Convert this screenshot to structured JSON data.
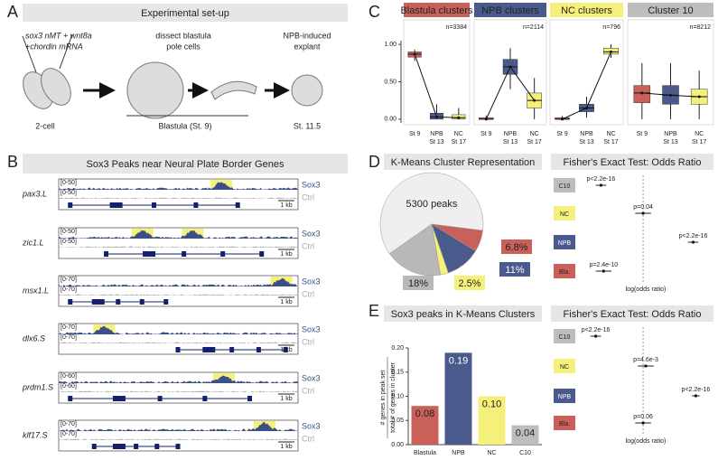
{
  "panel_labels": [
    "A",
    "B",
    "C",
    "D",
    "E"
  ],
  "setup": {
    "title": "Experimental set-up",
    "injection": [
      "sox3 nMT + wnt8a",
      "+chordin mRNA"
    ],
    "dissect": [
      "dissect blastula",
      "pole cells"
    ],
    "explant": [
      "NPB-induced",
      "explant"
    ],
    "stage_2cell": "2-cell",
    "stage_blastula": "Blastula (St. 9)",
    "stage_explant": "St. 11.5"
  },
  "tracks": {
    "title": "Sox3 Peaks near Neural Plate Border Genes",
    "sample_labels": [
      "Sox3",
      "Ctrl"
    ],
    "scale": "1 kb",
    "genes": [
      {
        "name": "pax3.L",
        "range": "[0-50]"
      },
      {
        "name": "zic1.L",
        "range": "[0-50]"
      },
      {
        "name": "msx1.L",
        "range": "[0-70]"
      },
      {
        "name": "dlx6.S",
        "range": "[0-70]"
      },
      {
        "name": "prdm1.S",
        "range": "[0-60]"
      },
      {
        "name": "klf17.S",
        "range": "[0-70]"
      }
    ]
  },
  "chart_data": [
    {
      "type": "box",
      "ylim": [
        -0.05,
        1.05
      ],
      "yticks": [
        {
          "value": 0,
          "label": "0.00"
        },
        {
          "value": 0.5,
          "label": "0.50"
        },
        {
          "value": 1,
          "label": "1.00"
        }
      ],
      "categories": [
        [
          "St 9"
        ],
        [
          "NPB",
          "St 13"
        ],
        [
          "NC",
          "St 17"
        ]
      ],
      "colors": [
        "#c9605a",
        "#4a5a8c",
        "#f5f07a"
      ],
      "panels": [
        {
          "title": "Blastula clusters",
          "color": "#c9605a",
          "n": "n=3384",
          "boxes": [
            {
              "low": 0.78,
              "q1": 0.83,
              "median": 0.87,
              "q3": 0.9,
              "high": 0.93
            },
            {
              "low": 0,
              "q1": 0,
              "median": 0.03,
              "q3": 0.08,
              "high": 0.2
            },
            {
              "low": 0,
              "q1": 0,
              "median": 0.02,
              "q3": 0.06,
              "high": 0.15
            }
          ]
        },
        {
          "title": "NPB clusters",
          "color": "#4a5a8c",
          "n": "n=2114",
          "boxes": [
            {
              "low": 0,
              "q1": 0,
              "median": 0,
              "q3": 0.02,
              "high": 0.05
            },
            {
              "low": 0.4,
              "q1": 0.6,
              "median": 0.7,
              "q3": 0.8,
              "high": 0.95
            },
            {
              "low": 0,
              "q1": 0.15,
              "median": 0.25,
              "q3": 0.35,
              "high": 0.55
            }
          ]
        },
        {
          "title": "NC clusters",
          "color": "#f5f07a",
          "n": "n=796",
          "boxes": [
            {
              "low": 0,
              "q1": 0,
              "median": 0,
              "q3": 0.02,
              "high": 0.04
            },
            {
              "low": 0.02,
              "q1": 0.1,
              "median": 0.15,
              "q3": 0.2,
              "high": 0.3
            },
            {
              "low": 0.82,
              "q1": 0.87,
              "median": 0.9,
              "q3": 0.95,
              "high": 1
            }
          ]
        },
        {
          "title": "Cluster 10",
          "color": "#bdbdbd",
          "n": "n=8212",
          "boxes": [
            {
              "low": 0,
              "q1": 0.22,
              "median": 0.35,
              "q3": 0.45,
              "high": 0.75
            },
            {
              "low": 0,
              "q1": 0.2,
              "median": 0.32,
              "q3": 0.45,
              "high": 0.75
            },
            {
              "low": 0,
              "q1": 0.2,
              "median": 0.3,
              "q3": 0.4,
              "high": 0.65
            }
          ]
        }
      ]
    },
    {
      "type": "pie",
      "title": "K-Means Cluster Representation",
      "center_label": "5300 peaks",
      "values": [
        61.7,
        6.8,
        11,
        2.5,
        18
      ],
      "value_labels": [
        null,
        "6.8%",
        "11%",
        "2.5%",
        "18%"
      ],
      "colors": [
        "#efefef",
        "#c9605a",
        "#4a5a8c",
        "#f5f07a",
        "#b8b8b8"
      ]
    },
    {
      "type": "forest",
      "title": "Fisher's Exact Test: Odds Ratio",
      "xlabel": "log(odds ratio)",
      "xlim": [
        -2.3,
        2.5
      ],
      "categories": [
        "C10",
        "NC",
        "NPB",
        "Bla."
      ],
      "colors": [
        "#bdbdbd",
        "#f5f07a",
        "#4a5a8c",
        "#c9605a"
      ],
      "values": [
        -1.6,
        0,
        1.9,
        -1.5
      ],
      "errors": [
        0.2,
        0.3,
        0.2,
        0.3
      ],
      "annotations": [
        "p<2.2e-16",
        "p=0.04",
        "p<2.2e-16",
        "p=2.4e-10"
      ]
    },
    {
      "type": "bar",
      "title": "Sox3 peaks in K-Means Clusters",
      "ylabel": [
        "# genes in peak set",
        "total # of genes in cluster"
      ],
      "categories": [
        "Blastula",
        "NPB",
        "NC",
        "C10"
      ],
      "values": [
        0.08,
        0.19,
        0.1,
        0.04
      ],
      "value_labels": [
        null,
        null,
        "0.10",
        null
      ],
      "colors": [
        "#c9605a",
        "#4a5a8c",
        "#f5f07a",
        "#bdbdbd"
      ],
      "ylim": [
        0,
        0.2
      ],
      "yticks": [
        {
          "value": 0,
          "label": "0.00"
        },
        0.05,
        {
          "value": 0.1,
          "label": "0.10"
        },
        0.15,
        {
          "value": 0.2,
          "label": "0.20"
        }
      ]
    },
    {
      "type": "forest",
      "title": "Fisher's Exact Test: Odds Ratio",
      "xlabel": "log(odds ratio)",
      "xlim": [
        -2.3,
        2.5
      ],
      "categories": [
        "C10",
        "NC",
        "NPB",
        "Bla."
      ],
      "colors": [
        "#bdbdbd",
        "#f5f07a",
        "#4a5a8c",
        "#c9605a"
      ],
      "values": [
        -1.8,
        0.1,
        2,
        0
      ],
      "errors": [
        0.2,
        0.3,
        0.15,
        0.3
      ],
      "annotations": [
        "p<2.2e-16",
        "p=4.6e-3",
        "p<2.2e-16",
        "p=0.06"
      ]
    }
  ]
}
